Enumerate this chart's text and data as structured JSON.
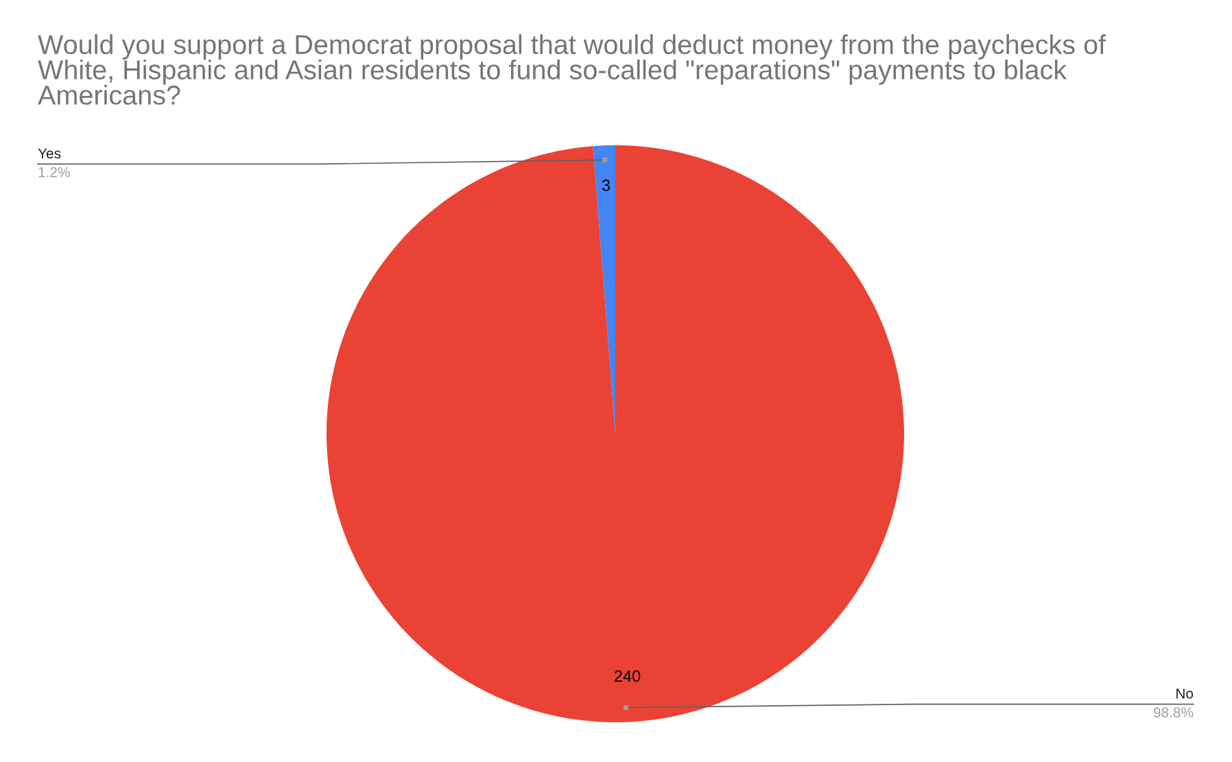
{
  "chart_data": {
    "type": "pie",
    "title": "Would you support a Democrat proposal that would deduct money from the paychecks of White, Hispanic and Asian residents to fund so-called \"reparations\" payments to black Americans?",
    "categories": [
      "Yes",
      "No"
    ],
    "values": [
      3,
      240
    ],
    "colors": [
      "#4285f4",
      "#ea4335"
    ],
    "value_labels": [
      "3",
      "240"
    ],
    "annotations": [
      {
        "text": "1.2%",
        "x": "Yes"
      },
      {
        "text": "98.8%",
        "x": "No"
      }
    ],
    "legend": false
  }
}
